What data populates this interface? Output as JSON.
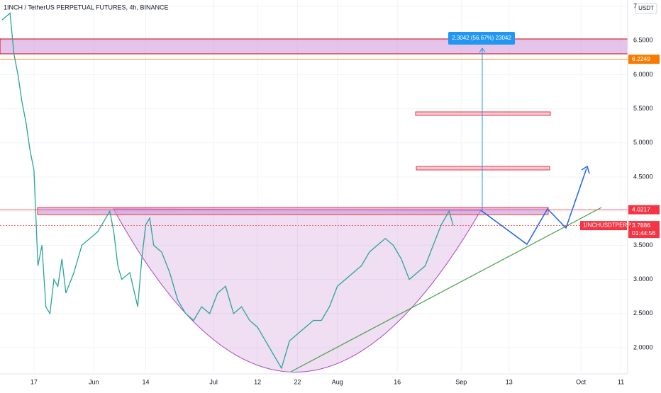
{
  "chart_data": {
    "type": "line",
    "title": "1INCH / TetherUS PERPETUAL FUTURES, 4h, BINANCE",
    "currency": "USDT",
    "x": [
      -8,
      -6,
      -5,
      -4,
      -3,
      -2,
      -1,
      0,
      1,
      2,
      3,
      4,
      5,
      6,
      7,
      8,
      10,
      12,
      14,
      16,
      18,
      19,
      20,
      21,
      22,
      24,
      26,
      27,
      28,
      29,
      30,
      32,
      34,
      36,
      38,
      40,
      42,
      44,
      46,
      48,
      50,
      52,
      54,
      56,
      58,
      60,
      62,
      64,
      66,
      68,
      70,
      72,
      74,
      76,
      78,
      80,
      82,
      84,
      86,
      88,
      90,
      92,
      94,
      96,
      98,
      100,
      102,
      104,
      105
    ],
    "series": [
      {
        "name": "1INCHUSDTPERP",
        "color": "#26a69a",
        "values": [
          6.8,
          6.9,
          6.3,
          6.0,
          5.6,
          5.3,
          4.9,
          4.6,
          3.2,
          3.5,
          2.6,
          2.5,
          3.0,
          2.9,
          3.3,
          2.8,
          3.1,
          3.5,
          3.6,
          3.7,
          3.9,
          4.0,
          3.7,
          3.2,
          3.0,
          3.1,
          2.6,
          3.3,
          3.8,
          3.9,
          3.5,
          3.4,
          3.1,
          2.7,
          2.5,
          2.4,
          2.6,
          2.5,
          2.8,
          2.9,
          2.5,
          2.6,
          2.4,
          2.3,
          2.1,
          1.9,
          1.7,
          2.1,
          2.2,
          2.3,
          2.4,
          2.4,
          2.6,
          2.9,
          3.0,
          3.1,
          3.2,
          3.4,
          3.5,
          3.6,
          3.5,
          3.3,
          3.0,
          3.1,
          3.2,
          3.5,
          3.8,
          4.0,
          3.79
        ]
      }
    ],
    "xlim": [
      -8.5,
      148.7
    ],
    "xticks": [
      {
        "value": 0,
        "label": "17"
      },
      {
        "value": 15,
        "label": "Jun"
      },
      {
        "value": 28,
        "label": "14"
      },
      {
        "value": 45,
        "label": "Jul"
      },
      {
        "value": 56,
        "label": "12"
      },
      {
        "value": 66,
        "label": "22"
      },
      {
        "value": 76,
        "label": "Aug"
      },
      {
        "value": 91,
        "label": "16"
      },
      {
        "value": 107,
        "label": "Sep"
      },
      {
        "value": 119,
        "label": "13"
      },
      {
        "value": 137,
        "label": "Oct"
      },
      {
        "value": 147,
        "label": "11"
      }
    ],
    "ylim": [
      1.648,
      7.093
    ],
    "yticks": [
      {
        "value": 2,
        "label": "2.0000"
      },
      {
        "value": 2.5,
        "label": "2.5000"
      },
      {
        "value": 3,
        "label": "3.0000"
      },
      {
        "value": 3.5,
        "label": "3.5000"
      },
      {
        "value": 4,
        "label": "4.0000"
      },
      {
        "value": 4.5,
        "label": "4.5000"
      },
      {
        "value": 5,
        "label": "5.0000"
      },
      {
        "value": 5.5,
        "label": "5.5000"
      },
      {
        "value": 6,
        "label": "6.0000"
      },
      {
        "value": 6.5,
        "label": "6.5000"
      },
      7
    ],
    "price_lines": [
      {
        "value": 6.2249,
        "color": "#f57c00"
      },
      {
        "value": 4.0217,
        "color": "#f23645"
      },
      {
        "value": 3.7886,
        "color": "#f23645",
        "countdown": "01:44:56"
      }
    ],
    "measure_label": "2.3042 (56.67%) 23042"
  }
}
